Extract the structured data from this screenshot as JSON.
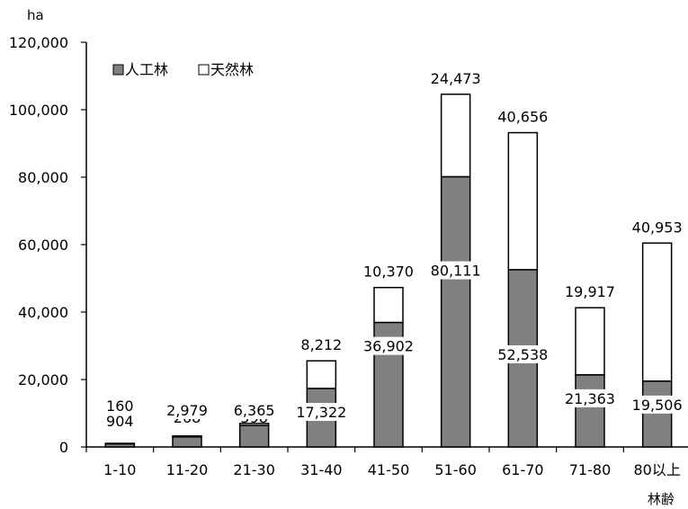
{
  "chart_data": {
    "type": "bar",
    "stacked": true,
    "ylabel": "ha",
    "xlabel": "林齢",
    "ylim": [
      0,
      120000
    ],
    "yticks": [
      0,
      20000,
      40000,
      60000,
      80000,
      100000,
      120000
    ],
    "ytick_labels": [
      "0",
      "20,000",
      "40,000",
      "60,000",
      "80,000",
      "100,000",
      "120,000"
    ],
    "categories": [
      "1-10",
      "11-20",
      "21-30",
      "31-40",
      "41-50",
      "51-60",
      "61-70",
      "71-80",
      "80以上"
    ],
    "series": [
      {
        "name": "人工林",
        "color": "#808080",
        "values": [
          904,
          2979,
          6365,
          17322,
          36902,
          80111,
          52538,
          21363,
          19506
        ],
        "labels": [
          "904",
          "2,979",
          "6,365",
          "17,322",
          "36,902",
          "80,111",
          "52,538",
          "21,363",
          "19,506"
        ]
      },
      {
        "name": "天然林",
        "color": "#ffffff",
        "values": [
          160,
          268,
          598,
          8212,
          10370,
          24473,
          40656,
          19917,
          40953
        ],
        "labels": [
          "160",
          "268",
          "598",
          "8,212",
          "10,370",
          "24,473",
          "40,656",
          "19,917",
          "40,953"
        ]
      }
    ],
    "legend_position": "top-left",
    "grid": false
  }
}
